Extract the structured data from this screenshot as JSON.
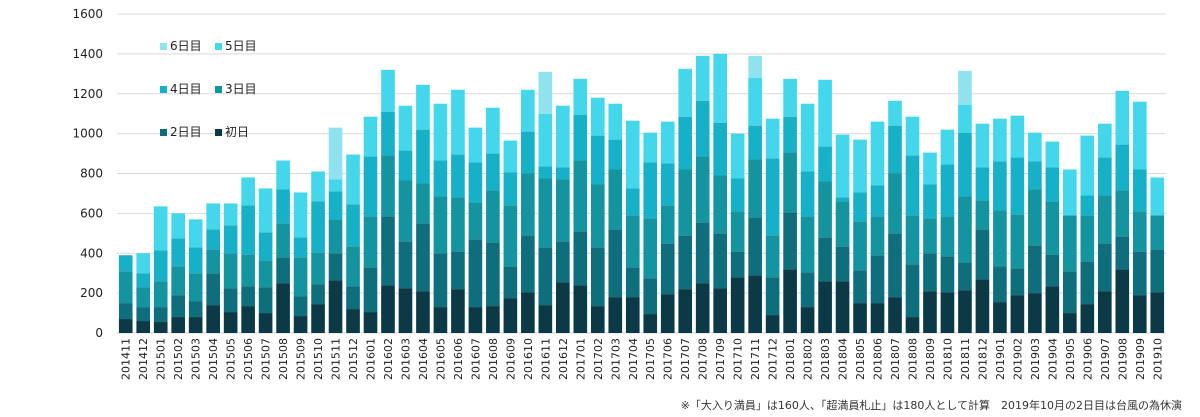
{
  "chart_data": {
    "type": "bar",
    "stacked": true,
    "categories": [
      "201411",
      "201412",
      "201501",
      "201502",
      "201503",
      "201504",
      "201505",
      "201506",
      "201507",
      "201508",
      "201509",
      "201510",
      "201511",
      "201512",
      "201601",
      "201602",
      "201603",
      "201604",
      "201605",
      "201606",
      "201607",
      "201608",
      "201609",
      "201610",
      "201611",
      "201612",
      "201701",
      "201702",
      "201703",
      "201704",
      "201705",
      "201706",
      "201707",
      "201708",
      "201709",
      "201710",
      "201711",
      "201712",
      "201801",
      "201802",
      "201803",
      "201804",
      "201805",
      "201806",
      "201807",
      "201808",
      "201809",
      "201810",
      "201811",
      "201812",
      "201901",
      "201902",
      "201903",
      "201904",
      "201905",
      "201906",
      "201907",
      "201908",
      "201909",
      "201910"
    ],
    "series": [
      {
        "name": "初日",
        "color": "#0b3a46",
        "values": [
          70,
          60,
          55,
          80,
          80,
          140,
          105,
          135,
          100,
          250,
          85,
          145,
          265,
          120,
          105,
          240,
          225,
          210,
          130,
          220,
          130,
          135,
          175,
          205,
          140,
          255,
          240,
          135,
          180,
          180,
          95,
          195,
          220,
          250,
          225,
          280,
          290,
          90,
          320,
          130,
          260,
          260,
          150,
          150,
          180,
          80,
          210,
          205,
          215,
          270,
          155,
          190,
          200,
          235,
          100,
          145,
          210,
          320,
          190,
          205
        ]
      },
      {
        "name": "2日目",
        "color": "#0f6e7c",
        "values": [
          80,
          70,
          75,
          110,
          80,
          160,
          120,
          100,
          130,
          130,
          100,
          100,
          135,
          115,
          225,
          345,
          235,
          340,
          270,
          190,
          340,
          320,
          160,
          285,
          290,
          205,
          270,
          295,
          340,
          150,
          180,
          255,
          270,
          305,
          275,
          130,
          290,
          190,
          285,
          175,
          220,
          175,
          165,
          240,
          320,
          265,
          190,
          180,
          140,
          250,
          180,
          135,
          240,
          160,
          210,
          215,
          240,
          165,
          220,
          215
        ]
      },
      {
        "name": "3日目",
        "color": "#14949f",
        "values": [
          160,
          100,
          130,
          145,
          140,
          120,
          175,
          160,
          135,
          170,
          195,
          160,
          170,
          200,
          255,
          305,
          305,
          200,
          285,
          270,
          185,
          260,
          305,
          310,
          345,
          310,
          355,
          315,
          300,
          260,
          300,
          190,
          330,
          330,
          290,
          200,
          290,
          210,
          300,
          280,
          280,
          225,
          245,
          195,
          300,
          245,
          175,
          200,
          330,
          145,
          280,
          270,
          280,
          265,
          280,
          230,
          240,
          230,
          200,
          170
        ]
      },
      {
        "name": "4日目",
        "color": "#16b1c6",
        "values": [
          80,
          70,
          155,
          140,
          130,
          100,
          140,
          245,
          140,
          170,
          100,
          255,
          140,
          210,
          300,
          220,
          150,
          270,
          180,
          215,
          200,
          185,
          165,
          210,
          60,
          60,
          230,
          245,
          150,
          135,
          280,
          210,
          265,
          280,
          265,
          165,
          170,
          385,
          180,
          225,
          175,
          20,
          145,
          155,
          240,
          300,
          170,
          260,
          320,
          165,
          245,
          285,
          140,
          170,
          0,
          100,
          190,
          230,
          210,
          0
        ]
      },
      {
        "name": "5日目",
        "color": "#44d6ea",
        "values": [
          0,
          100,
          220,
          125,
          140,
          130,
          110,
          140,
          220,
          145,
          225,
          150,
          60,
          250,
          200,
          210,
          225,
          225,
          285,
          325,
          175,
          230,
          160,
          210,
          265,
          310,
          180,
          190,
          180,
          340,
          150,
          210,
          240,
          225,
          345,
          225,
          240,
          200,
          190,
          340,
          335,
          315,
          265,
          320,
          125,
          195,
          160,
          175,
          140,
          220,
          215,
          210,
          145,
          130,
          230,
          300,
          170,
          270,
          340,
          190
        ]
      },
      {
        "name": "6日目",
        "color": "#8ee3ee",
        "values": [
          0,
          0,
          0,
          0,
          0,
          0,
          0,
          0,
          0,
          0,
          0,
          0,
          260,
          0,
          0,
          0,
          0,
          0,
          0,
          0,
          0,
          0,
          0,
          0,
          210,
          0,
          0,
          0,
          0,
          0,
          0,
          0,
          0,
          0,
          0,
          0,
          110,
          0,
          0,
          0,
          0,
          0,
          0,
          0,
          0,
          0,
          0,
          0,
          170,
          0,
          0,
          0,
          0,
          0,
          0,
          0,
          0,
          0,
          0,
          0
        ]
      }
    ],
    "ylim": [
      0,
      1600
    ],
    "yticks": [
      0,
      200,
      400,
      600,
      800,
      1000,
      1200,
      1400,
      1600
    ],
    "grid": true,
    "legend": [
      {
        "label": "6日目",
        "color": "#8ee3ee"
      },
      {
        "label": "5日目",
        "color": "#44d6ea"
      },
      {
        "label": "4日目",
        "color": "#16b1c6"
      },
      {
        "label": "3日目",
        "color": "#14949f"
      },
      {
        "label": "2日目",
        "color": "#0f6e7c"
      },
      {
        "label": "初日",
        "color": "#0b3a46"
      }
    ],
    "legend_position": "top-left",
    "footnote": "※「大入り満員」は160人、「超満員札止」は180人として計算　2019年10月の2日目は台風の為休演"
  }
}
